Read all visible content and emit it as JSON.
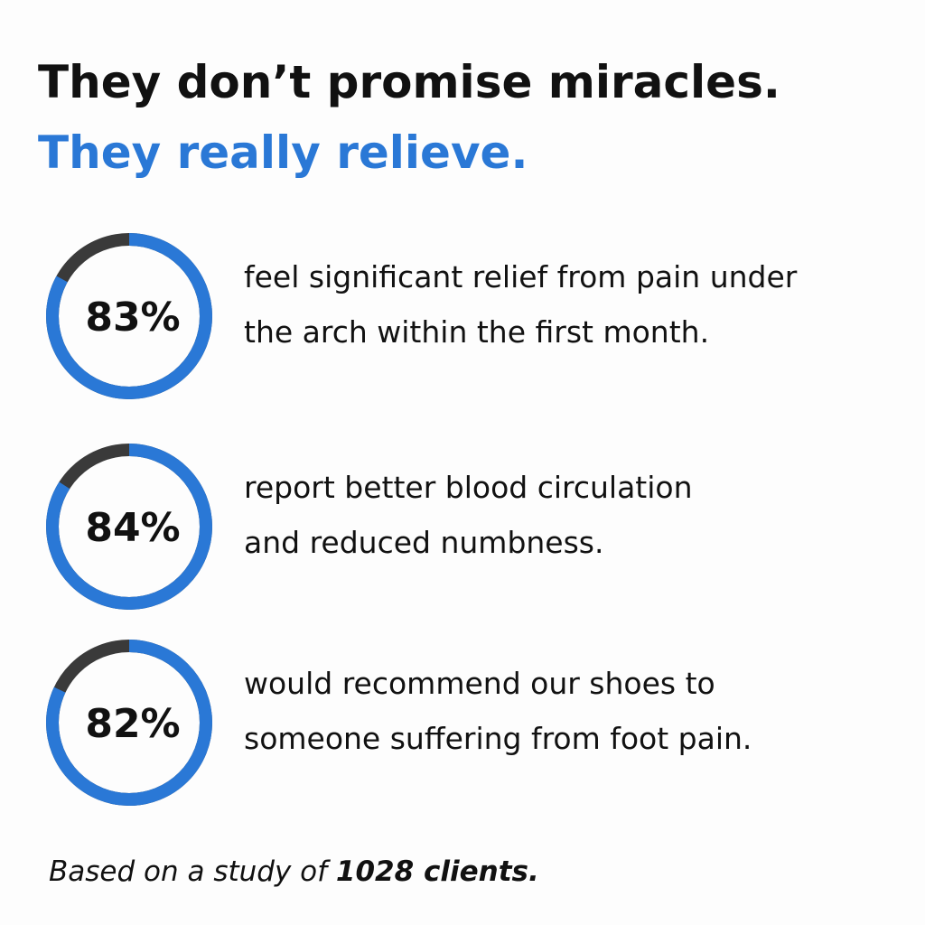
{
  "title": {
    "line1": "They don’t promise miracles.",
    "line2": "They really relieve."
  },
  "stats": [
    {
      "value": 83,
      "label": "83%",
      "lines": [
        "feel significant relief from pain under",
        "the arch within the first month."
      ]
    },
    {
      "value": 84,
      "label": "84%",
      "lines": [
        "report better blood circulation",
        "and reduced numbness."
      ]
    },
    {
      "value": 82,
      "label": "82%",
      "lines": [
        "would recommend our shoes to",
        "someone suffering from foot pain."
      ]
    }
  ],
  "footnote": {
    "text": "Based on a study of ",
    "emphasis": "1028 clients."
  }
}
